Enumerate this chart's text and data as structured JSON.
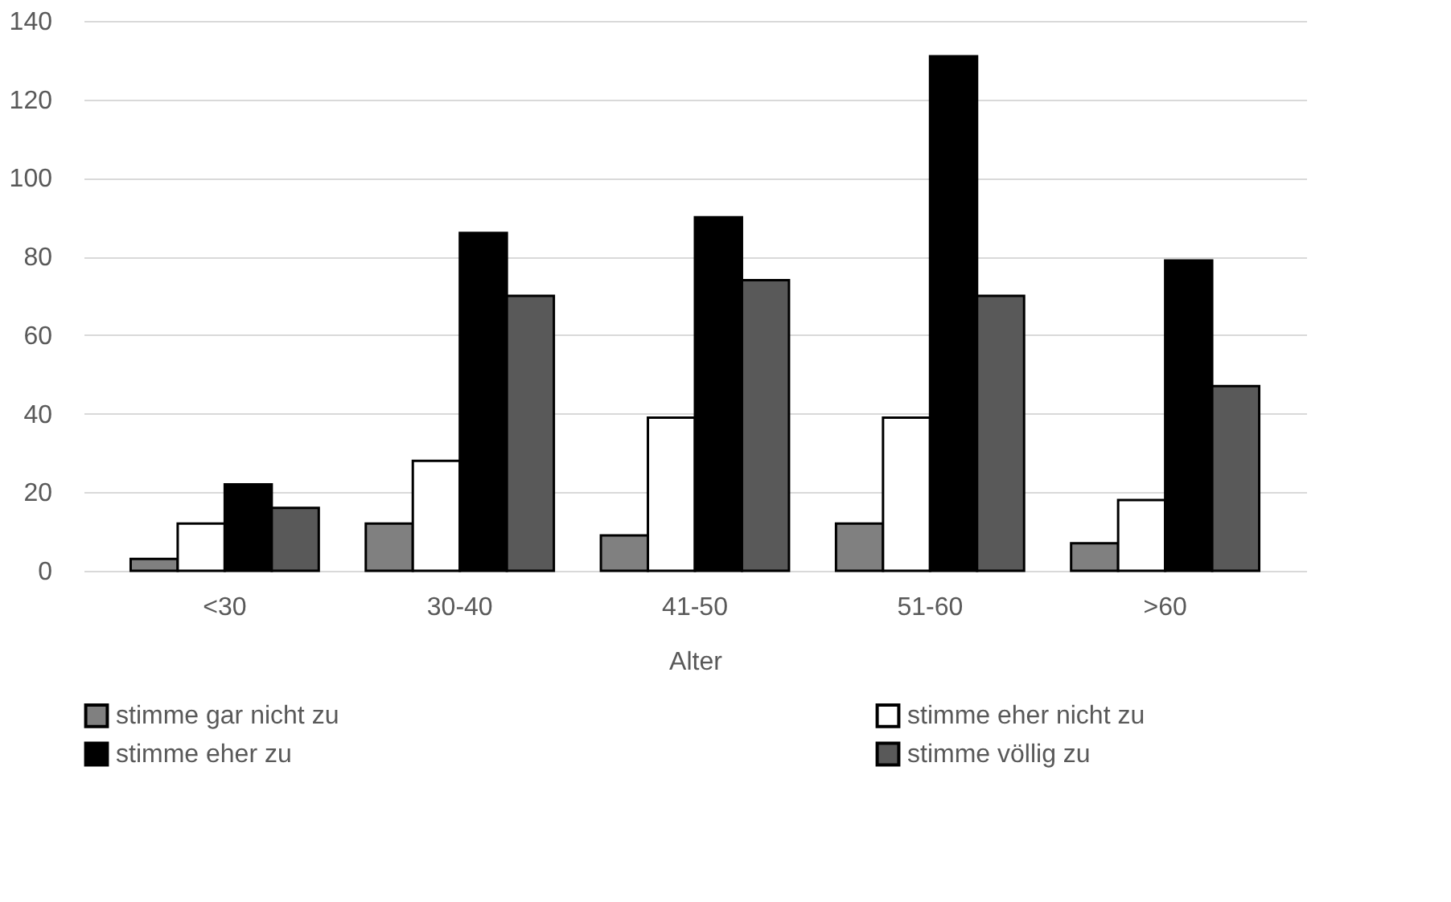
{
  "chart_data": {
    "type": "bar",
    "xlabel": "Alter",
    "categories": [
      "<30",
      "30-40",
      "41-50",
      "51-60",
      ">60"
    ],
    "series": [
      {
        "name": "stimme gar nicht zu",
        "color": "#808080",
        "values": [
          3,
          12,
          9,
          12,
          7
        ]
      },
      {
        "name": "stimme eher nicht zu",
        "color": "#ffffff",
        "values": [
          12,
          28,
          39,
          39,
          18
        ]
      },
      {
        "name": "stimme eher zu",
        "color": "#000000",
        "values": [
          22,
          86,
          90,
          131,
          79
        ]
      },
      {
        "name": "stimme völlig zu",
        "color": "#595959",
        "values": [
          16,
          70,
          74,
          70,
          47
        ]
      }
    ],
    "ylim": [
      0,
      140
    ],
    "yticks": [
      0,
      20,
      40,
      60,
      80,
      100,
      120,
      140
    ],
    "grid": "y",
    "legend": "bottom"
  }
}
